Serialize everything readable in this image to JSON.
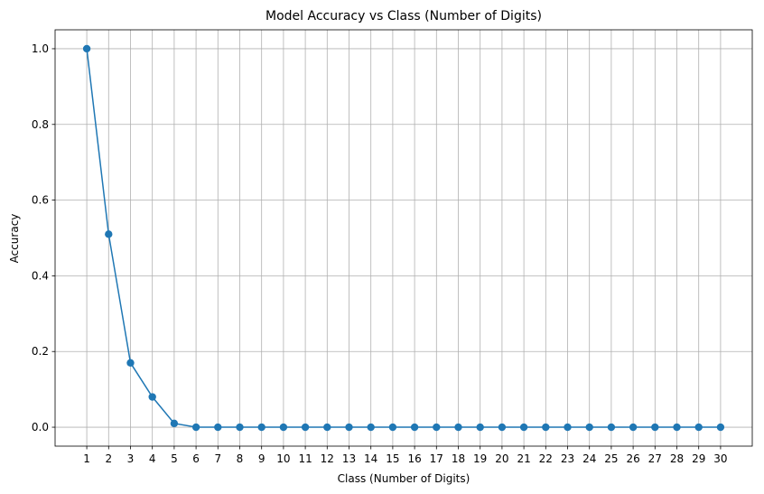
{
  "chart_data": {
    "type": "line",
    "title": "Model Accuracy vs Class (Number of Digits)",
    "xlabel": "Class (Number of Digits)",
    "ylabel": "Accuracy",
    "x": [
      1,
      2,
      3,
      4,
      5,
      6,
      7,
      8,
      9,
      10,
      11,
      12,
      13,
      14,
      15,
      16,
      17,
      18,
      19,
      20,
      21,
      22,
      23,
      24,
      25,
      26,
      27,
      28,
      29,
      30
    ],
    "x_tick_labels": [
      "1",
      "2",
      "3",
      "4",
      "5",
      "6",
      "7",
      "8",
      "9",
      "10",
      "11",
      "12",
      "13",
      "14",
      "15",
      "16",
      "17",
      "18",
      "19",
      "20",
      "21",
      "22",
      "23",
      "24",
      "25",
      "26",
      "27",
      "28",
      "29",
      "30"
    ],
    "series": [
      {
        "values": [
          1.0,
          0.51,
          0.17,
          0.08,
          0.01,
          0,
          0,
          0,
          0,
          0,
          0,
          0,
          0,
          0,
          0,
          0,
          0,
          0,
          0,
          0,
          0,
          0,
          0,
          0,
          0,
          0,
          0,
          0,
          0,
          0
        ],
        "color": "#1f77b4",
        "marker": "circle"
      }
    ],
    "y_ticks": [
      0.0,
      0.2,
      0.4,
      0.6,
      0.8,
      1.0
    ],
    "y_tick_labels": [
      "0.0",
      "0.2",
      "0.4",
      "0.6",
      "0.8",
      "1.0"
    ],
    "xlim": [
      -0.45,
      31.45
    ],
    "ylim": [
      -0.05,
      1.05
    ],
    "grid": true
  }
}
